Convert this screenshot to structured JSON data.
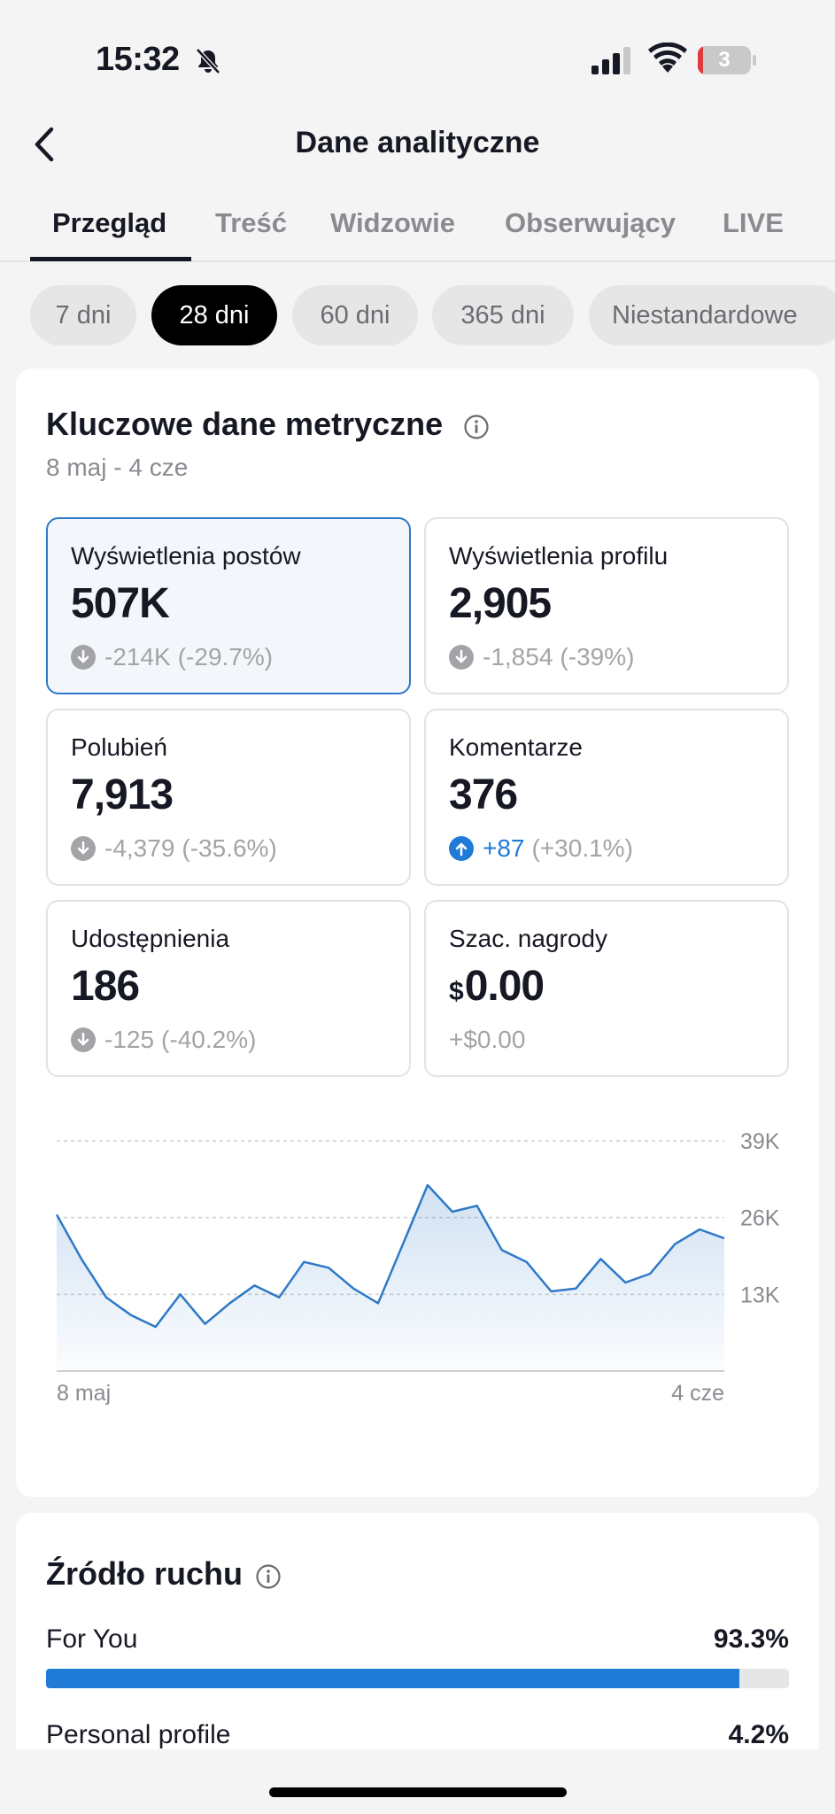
{
  "status_bar": {
    "time": "15:32",
    "battery_level": "3",
    "battery_fraction": 0.03
  },
  "header": {
    "title": "Dane analityczne"
  },
  "tabs": [
    {
      "label": "Przegląd",
      "active": true
    },
    {
      "label": "Treść"
    },
    {
      "label": "Widzowie"
    },
    {
      "label": "Obserwujący"
    },
    {
      "label": "LIVE"
    }
  ],
  "periods": [
    {
      "label": "7 dni"
    },
    {
      "label": "28 dni",
      "active": true
    },
    {
      "label": "60 dni"
    },
    {
      "label": "365 dni"
    },
    {
      "label": "Niestandardowe"
    }
  ],
  "key_metrics": {
    "title": "Kluczowe dane metryczne",
    "date_range": "8 maj - 4 cze",
    "items": [
      {
        "label": "Wyświetlenia postów",
        "value": "507K",
        "delta": "-214K",
        "pct": "(-29.7%)",
        "direction": "down",
        "selected": true
      },
      {
        "label": "Wyświetlenia profilu",
        "value": "2,905",
        "delta": "-1,854",
        "pct": "(-39%)",
        "direction": "down"
      },
      {
        "label": "Polubień",
        "value": "7,913",
        "delta": "-4,379",
        "pct": "(-35.6%)",
        "direction": "down"
      },
      {
        "label": "Komentarze",
        "value": "376",
        "delta": "+87",
        "pct": "(+30.1%)",
        "direction": "up"
      },
      {
        "label": "Udostępnienia",
        "value": "186",
        "delta": "-125",
        "pct": "(-40.2%)",
        "direction": "down"
      },
      {
        "label": "Szac. nagrody",
        "currency": "$",
        "value": "0.00",
        "delta": "+$0.00",
        "pct": "",
        "direction": "none"
      }
    ]
  },
  "chart_data": {
    "type": "area",
    "series": [
      {
        "values": [
          26500,
          19000,
          12500,
          9500,
          7500,
          13000,
          8000,
          11500,
          14500,
          12500,
          18500,
          17500,
          14000,
          11500,
          21500,
          31500,
          27000,
          28000,
          20500,
          18500,
          13500,
          14000,
          19000,
          15000,
          16500,
          21500,
          24000,
          22500
        ]
      }
    ],
    "x_tick_labels": [
      "8 maj",
      "4 cze"
    ],
    "y_ticks": [
      13000,
      26000,
      39000
    ],
    "y_tick_labels": [
      "13K",
      "26K",
      "39K"
    ],
    "ylim": [
      0,
      39000
    ],
    "grid": true,
    "color": "#2d79c7"
  },
  "traffic": {
    "title": "Źródło ruchu",
    "rows": [
      {
        "label": "For You",
        "pct": "93.3%",
        "value": 93.3
      },
      {
        "label": "Personal profile",
        "pct": "4.2%",
        "value": 4.2
      }
    ]
  },
  "colors": {
    "accent": "#1f7bd6",
    "selected_border": "#2d79c7",
    "muted": "#8a8b91",
    "battery": "#e0393e"
  }
}
